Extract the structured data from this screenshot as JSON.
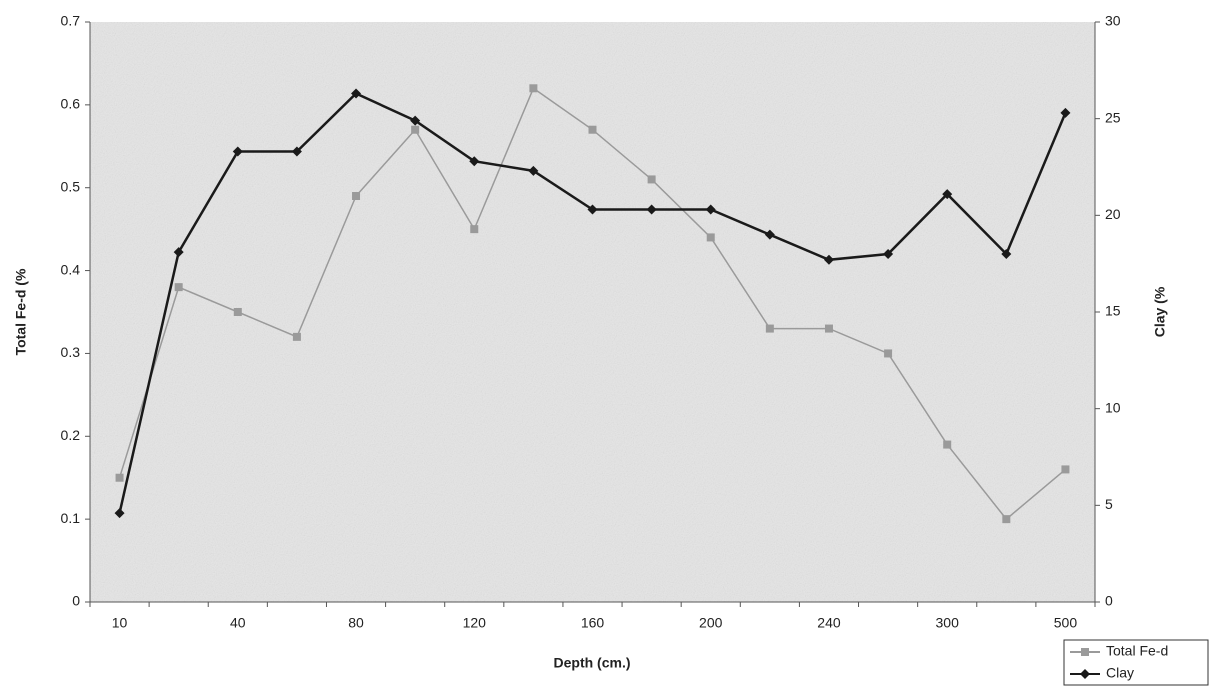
{
  "chart_data": {
    "type": "line",
    "x_label": "Depth (cm.)",
    "y_label": "Total Fe-d (%",
    "y2_label": "Clay (%",
    "categories": [
      "10",
      null,
      "40",
      null,
      "80",
      null,
      "120",
      null,
      "160",
      null,
      "200",
      null,
      "240",
      null,
      "300",
      null,
      "500"
    ],
    "series": [
      {
        "name": "Total Fe-d",
        "color": "#9a9a9a",
        "marker": "square",
        "values": [
          0.15,
          0.38,
          0.35,
          0.32,
          0.49,
          0.57,
          0.45,
          0.62,
          0.57,
          0.51,
          0.44,
          0.33,
          0.33,
          0.3,
          0.19,
          0.1,
          0.16
        ]
      },
      {
        "name": "Clay",
        "color": "#1a1a1a",
        "marker": "diamond",
        "axis": "y2",
        "values": [
          4.6,
          18.1,
          23.3,
          23.3,
          26.3,
          24.9,
          22.8,
          22.3,
          20.3,
          20.3,
          20.3,
          19.0,
          17.7,
          18.0,
          21.1,
          18.0,
          25.3
        ]
      }
    ],
    "ylim": [
      0,
      0.7
    ],
    "yticks": [
      0,
      0.1,
      0.2,
      0.3,
      0.4,
      0.5,
      0.6,
      0.7
    ],
    "y2lim": [
      0,
      30
    ],
    "y2ticks": [
      0,
      5,
      10,
      15,
      20,
      25,
      30
    ]
  }
}
